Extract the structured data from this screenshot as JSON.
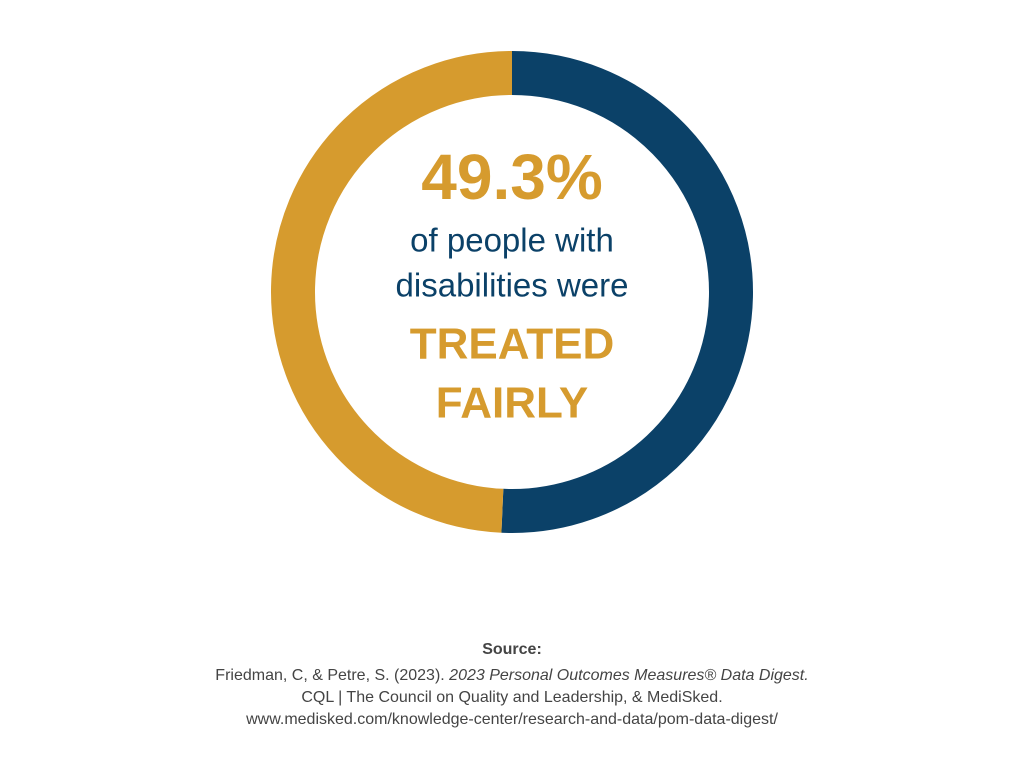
{
  "chart_data": {
    "type": "donut",
    "values": [
      50.7,
      49.3
    ],
    "value_labels": [
      null,
      "49.3%"
    ],
    "colors": [
      "#0b4168",
      "#d69b2e"
    ],
    "center_lines": [
      "of people with",
      "disabilities were"
    ],
    "emphasis_lines": [
      "TREATED",
      "FAIRLY"
    ]
  },
  "source": {
    "heading": "Source:",
    "citation_authors": "Friedman, C, & Petre, S. (2023).",
    "citation_title": "2023 Personal Outcomes Measures® Data Digest.",
    "publisher": "CQL | The Council on Quality and Leadership, & MediSked.",
    "url": "www.medisked.com/knowledge-center/research-and-data/pom-data-digest/"
  }
}
